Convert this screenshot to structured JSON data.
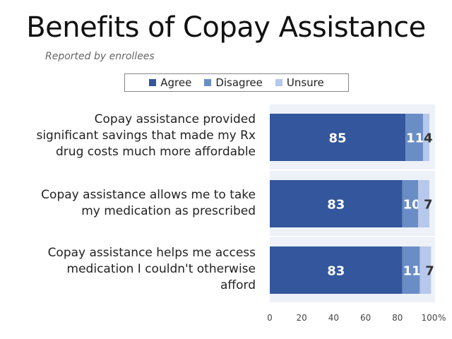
{
  "chart_data": {
    "type": "bar",
    "orientation": "horizontal",
    "stacked": true,
    "title": "Benefits of Copay Assistance",
    "subtitle": "Reported by enrollees",
    "categories": [
      "Copay assistance provided significant savings that made my Rx drug costs much more affordable",
      "Copay assistance allows me to take my medication as prescribed",
      "Copay assistance helps me access medication I couldn't otherwise afford"
    ],
    "category_lines": [
      [
        "Copay assistance provided",
        "significant savings that made my Rx",
        "drug costs much more affordable"
      ],
      [
        "Copay assistance allows me to take",
        "my medication as prescribed"
      ],
      [
        "Copay assistance helps me access",
        "medication I couldn't otherwise",
        "afford"
      ]
    ],
    "series": [
      {
        "name": "Agree",
        "values": [
          85,
          83,
          83
        ]
      },
      {
        "name": "Disagree",
        "values": [
          11,
          10,
          11
        ]
      },
      {
        "name": "Unsure",
        "values": [
          4,
          7,
          7
        ]
      }
    ],
    "xlim": [
      0,
      100
    ],
    "ticks": [
      0,
      20,
      40,
      60,
      80,
      100
    ],
    "tick_labels": [
      "0",
      "20",
      "40",
      "60",
      "80",
      "100"
    ],
    "xunit": "%",
    "legend_position": "top",
    "grid": false
  },
  "colors": {
    "Agree": "#33569c",
    "Disagree": "#6a8dc6",
    "Unsure": "#b6c8eb",
    "band": "#eef1f8"
  }
}
